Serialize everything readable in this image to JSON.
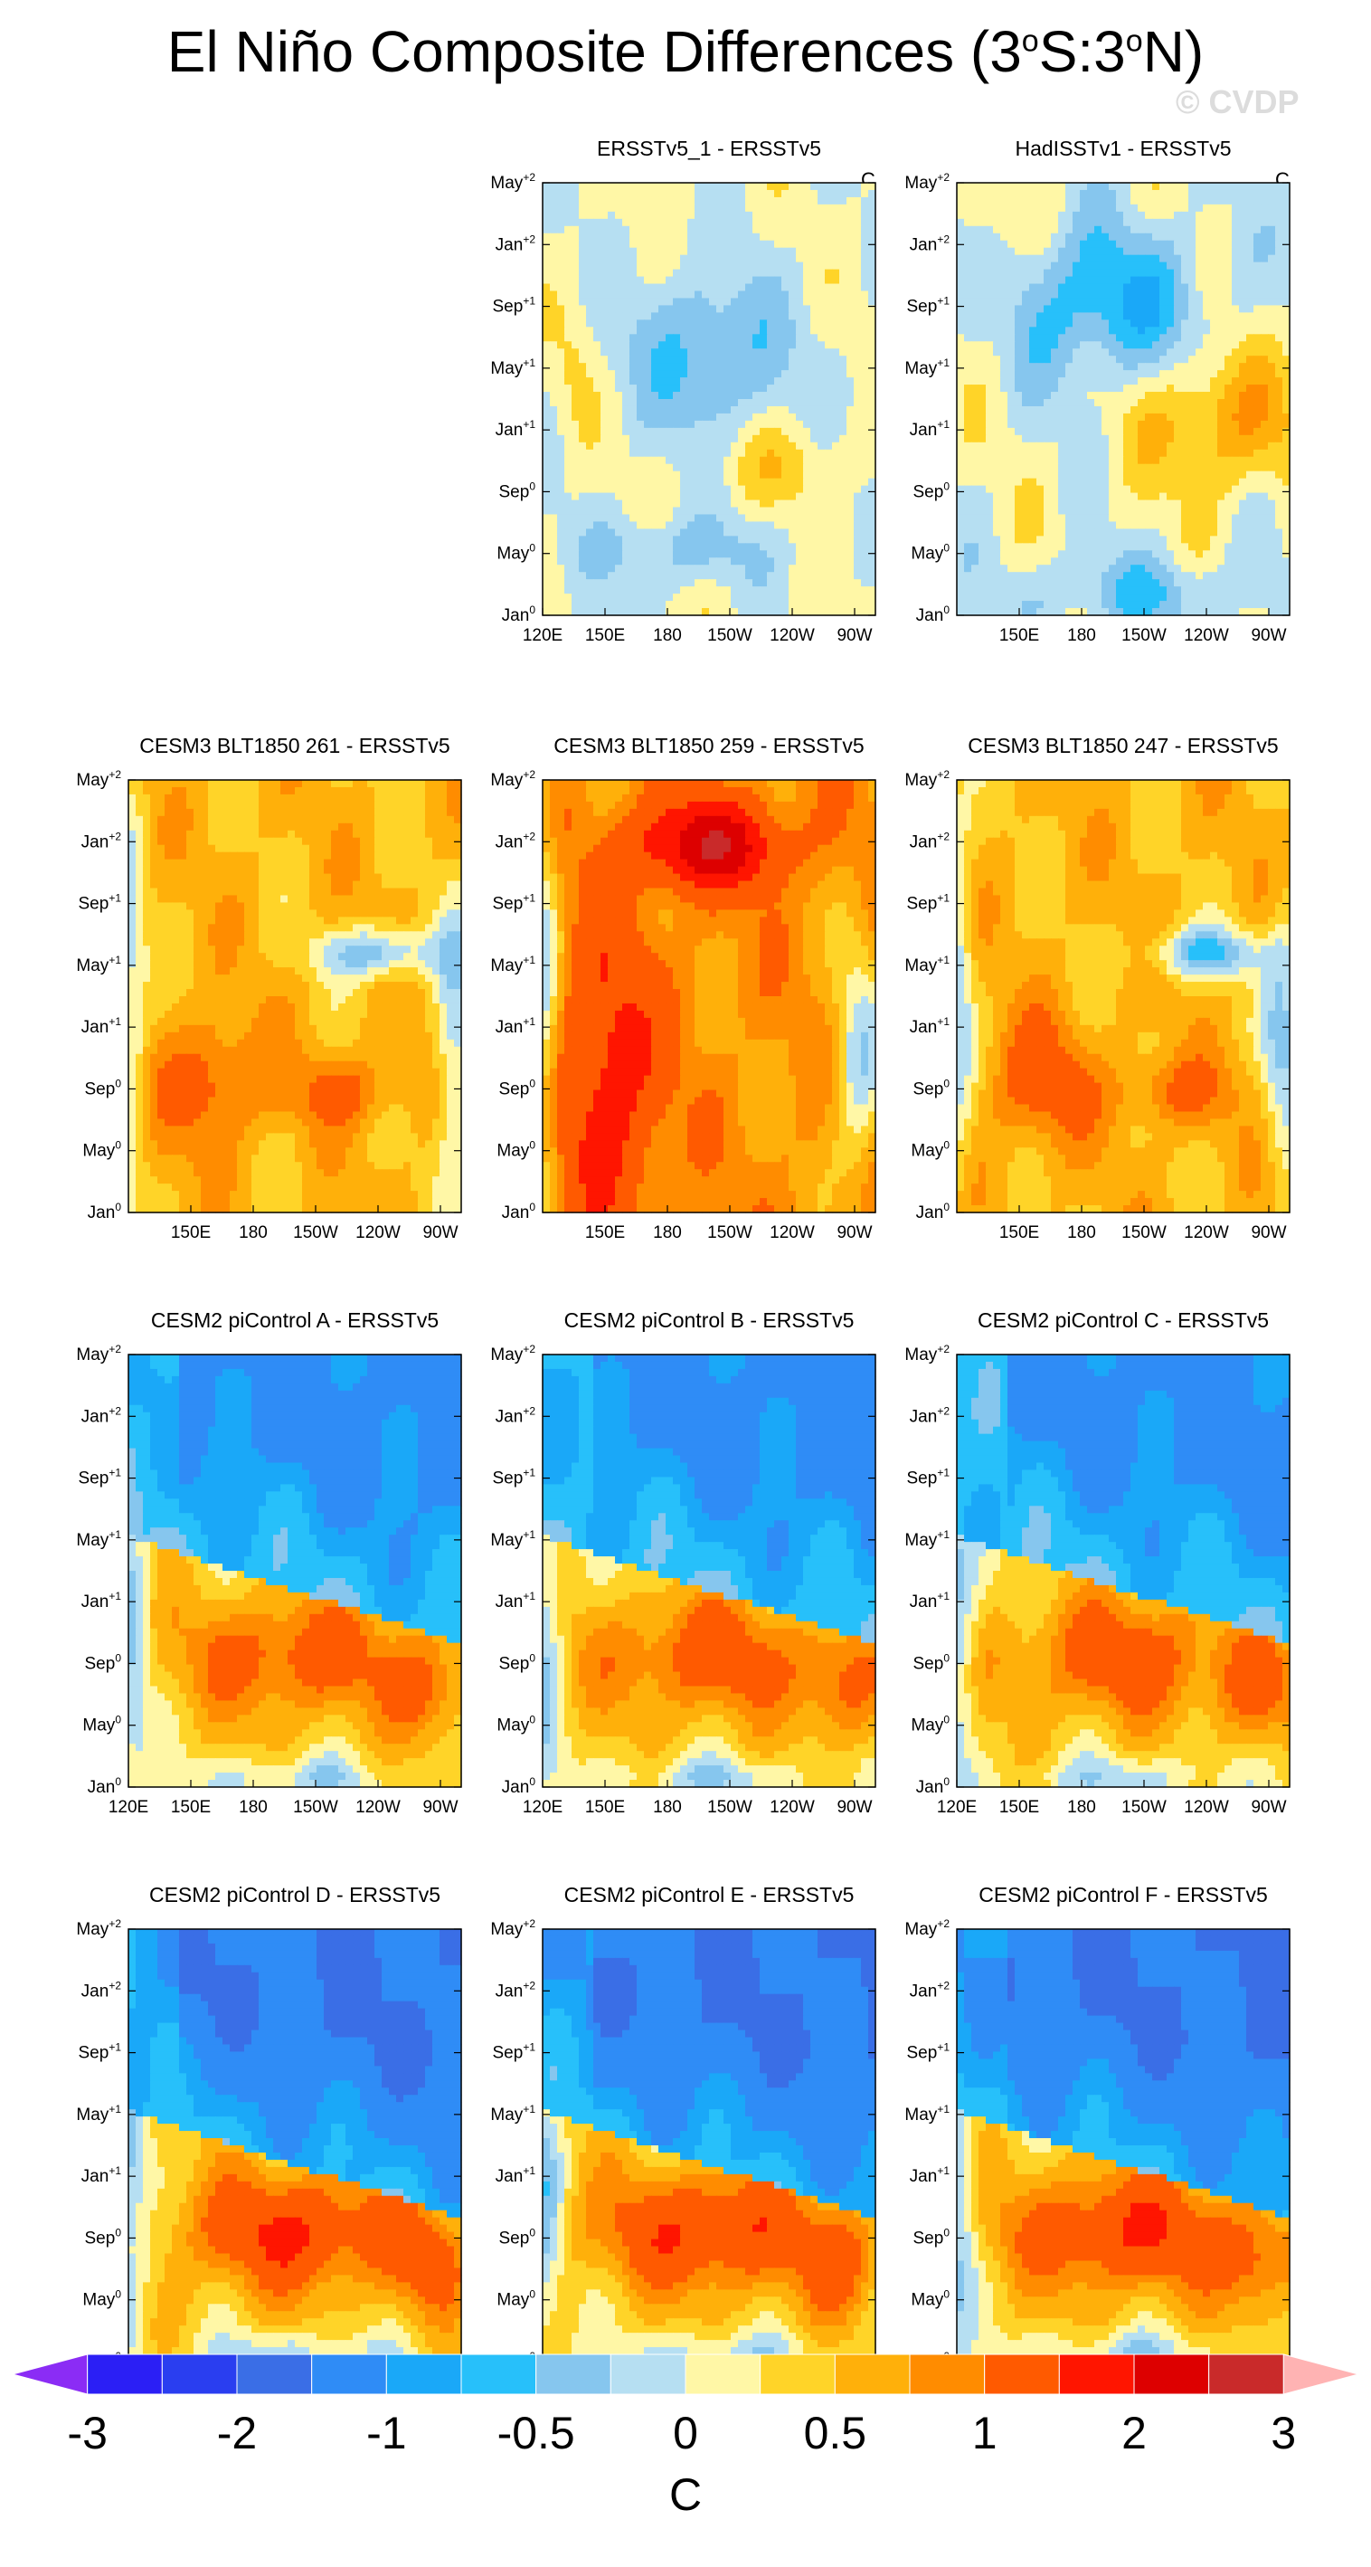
{
  "title": {
    "text": "El Niño Composite Differences (3",
    "deg1": "o",
    "mid": "S:3",
    "deg2": "o",
    "end": "N)"
  },
  "watermark": "© CVDP",
  "colors": {
    "scale": [
      "#8b2cf5",
      "#2b1ff5",
      "#2a3ef0",
      "#3a6ee6",
      "#2f8cf6",
      "#1aa8f8",
      "#27c0fa",
      "#86c6ee",
      "#b6dff2",
      "#fff7a6",
      "#ffd428",
      "#ffb00a",
      "#ff8c00",
      "#ff5a00",
      "#ff1500",
      "#dd0000",
      "#c92a2a",
      "#ffb3b3"
    ],
    "line": "#555555"
  },
  "colorbar": {
    "labels": [
      "-3",
      "-2",
      "-1",
      "-0.5",
      "0",
      "0.5",
      "1",
      "2",
      "3"
    ],
    "unit": "C"
  },
  "axis_labels": {
    "y": [
      {
        "base": "Jan",
        "sup": "0"
      },
      {
        "base": "May",
        "sup": "0"
      },
      {
        "base": "Sep",
        "sup": "0"
      },
      {
        "base": "Jan",
        "sup": "+1"
      },
      {
        "base": "May",
        "sup": "+1"
      },
      {
        "base": "Sep",
        "sup": "+1"
      },
      {
        "base": "Jan",
        "sup": "+2"
      },
      {
        "base": "May",
        "sup": "+2"
      }
    ],
    "x_full": [
      "120E",
      "150E",
      "180",
      "150W",
      "120W",
      "90W"
    ],
    "x_short": [
      "150E",
      "180",
      "150W",
      "120W",
      "90W"
    ]
  },
  "chart_data": [
    {
      "type": "heatmap",
      "title": "ERSSTv5_1 - ERSSTv5",
      "unit": "C",
      "xlabels": "full",
      "style": "obs_low",
      "x_range": [
        "120E",
        "80W"
      ],
      "y_range": [
        "Jan0",
        "May+2"
      ]
    },
    {
      "type": "heatmap",
      "title": "HadISSTv1 - ERSSTv5",
      "unit": "C",
      "xlabels": "short",
      "style": "obs_mid",
      "x_range": [
        "120E",
        "80W"
      ],
      "y_range": [
        "Jan0",
        "May+2"
      ]
    },
    {
      "type": "heatmap",
      "title": "CESM3 BLT1850 261 - ERSSTv5",
      "unit": "",
      "xlabels": "short",
      "style": "cesm3_a",
      "x_range": [
        "120E",
        "80W"
      ],
      "y_range": [
        "Jan0",
        "May+2"
      ]
    },
    {
      "type": "heatmap",
      "title": "CESM3 BLT1850 259 - ERSSTv5",
      "unit": "",
      "xlabels": "short",
      "style": "cesm3_hot",
      "x_range": [
        "120E",
        "80W"
      ],
      "y_range": [
        "Jan0",
        "May+2"
      ]
    },
    {
      "type": "heatmap",
      "title": "CESM3 BLT1850 247 - ERSSTv5",
      "unit": "",
      "xlabels": "short",
      "style": "cesm3_a",
      "x_range": [
        "120E",
        "80W"
      ],
      "y_range": [
        "Jan0",
        "May+2"
      ]
    },
    {
      "type": "heatmap",
      "title": "CESM2 piControl A - ERSSTv5",
      "unit": "",
      "xlabels": "full",
      "style": "cesm2",
      "x_range": [
        "120E",
        "80W"
      ],
      "y_range": [
        "Jan0",
        "May+2"
      ]
    },
    {
      "type": "heatmap",
      "title": "CESM2 piControl B - ERSSTv5",
      "unit": "",
      "xlabels": "full",
      "style": "cesm2",
      "x_range": [
        "120E",
        "80W"
      ],
      "y_range": [
        "Jan0",
        "May+2"
      ]
    },
    {
      "type": "heatmap",
      "title": "CESM2 piControl C - ERSSTv5",
      "unit": "",
      "xlabels": "full",
      "style": "cesm2",
      "x_range": [
        "120E",
        "80W"
      ],
      "y_range": [
        "Jan0",
        "May+2"
      ]
    },
    {
      "type": "heatmap",
      "title": "CESM2 piControl D - ERSSTv5",
      "unit": "",
      "xlabels": "full",
      "style": "cesm2_strong",
      "x_range": [
        "120E",
        "80W"
      ],
      "y_range": [
        "Jan0",
        "May+2"
      ]
    },
    {
      "type": "heatmap",
      "title": "CESM2 piControl E - ERSSTv5",
      "unit": "",
      "xlabels": "full",
      "style": "cesm2_strong",
      "x_range": [
        "120E",
        "80W"
      ],
      "y_range": [
        "Jan0",
        "May+2"
      ]
    },
    {
      "type": "heatmap",
      "title": "CESM2 piControl F - ERSSTv5",
      "unit": "",
      "xlabels": "full",
      "style": "cesm2_strong",
      "x_range": [
        "120E",
        "80W"
      ],
      "y_range": [
        "Jan0",
        "May+2"
      ]
    }
  ]
}
